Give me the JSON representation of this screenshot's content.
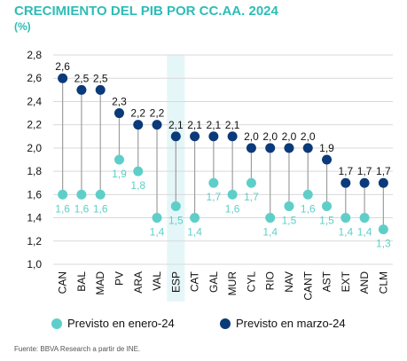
{
  "title": "CRECIMIENTO DEL PIB POR CC.AA. 2024",
  "subtitle": "(%)",
  "source": "Fuente: BBVA Research a partir de INE.",
  "colors": {
    "enero": "#5ecfc8",
    "marzo": "#0a3a7a",
    "highlight": "#e4f6f8",
    "stem": "#9e9e9e",
    "grid": "#d9d9d9",
    "title": "#2dbdb6"
  },
  "chart_data": {
    "type": "dot-range",
    "categories": [
      "CAN",
      "BAL",
      "MAD",
      "PV",
      "ARA",
      "VAL",
      "ESP",
      "CAT",
      "GAL",
      "MUR",
      "CYL",
      "RIO",
      "NAV",
      "CANT",
      "AST",
      "EXT",
      "AND",
      "CLM"
    ],
    "highlight_category": "ESP",
    "ylim": [
      1.0,
      2.8
    ],
    "yticks": [
      "1,0",
      "1,2",
      "1,4",
      "1,6",
      "1,8",
      "2,0",
      "2,2",
      "2,4",
      "2,6",
      "2,8"
    ],
    "series": [
      {
        "name": "Previsto en enero-24",
        "values": [
          1.6,
          1.6,
          1.6,
          1.9,
          1.8,
          1.4,
          1.5,
          1.4,
          1.7,
          1.6,
          1.7,
          1.4,
          1.5,
          1.6,
          1.5,
          1.4,
          1.4,
          1.3
        ],
        "labels": [
          "1,6",
          "1,6",
          "1,6",
          "1,9",
          "1,8",
          "1,4",
          "1,5",
          "1,4",
          "1,7",
          "1,6",
          "1,7",
          "1,4",
          "1,5",
          "1,6",
          "1,5",
          "1,4",
          "1,4",
          "1,3"
        ]
      },
      {
        "name": "Previsto en marzo-24",
        "values": [
          2.6,
          2.5,
          2.5,
          2.3,
          2.2,
          2.2,
          2.1,
          2.1,
          2.1,
          2.1,
          2.0,
          2.0,
          2.0,
          2.0,
          1.9,
          1.7,
          1.7,
          1.7
        ],
        "labels": [
          "2,6",
          "2,5",
          "2,5",
          "2,3",
          "2,2",
          "2,2",
          "2,1",
          "2,1",
          "2,1",
          "2,1",
          "2,0",
          "2,0",
          "2,0",
          "2,0",
          "1,9",
          "1,7",
          "1,7",
          "1,7"
        ]
      }
    ],
    "grid": true,
    "legend_position": "bottom"
  }
}
